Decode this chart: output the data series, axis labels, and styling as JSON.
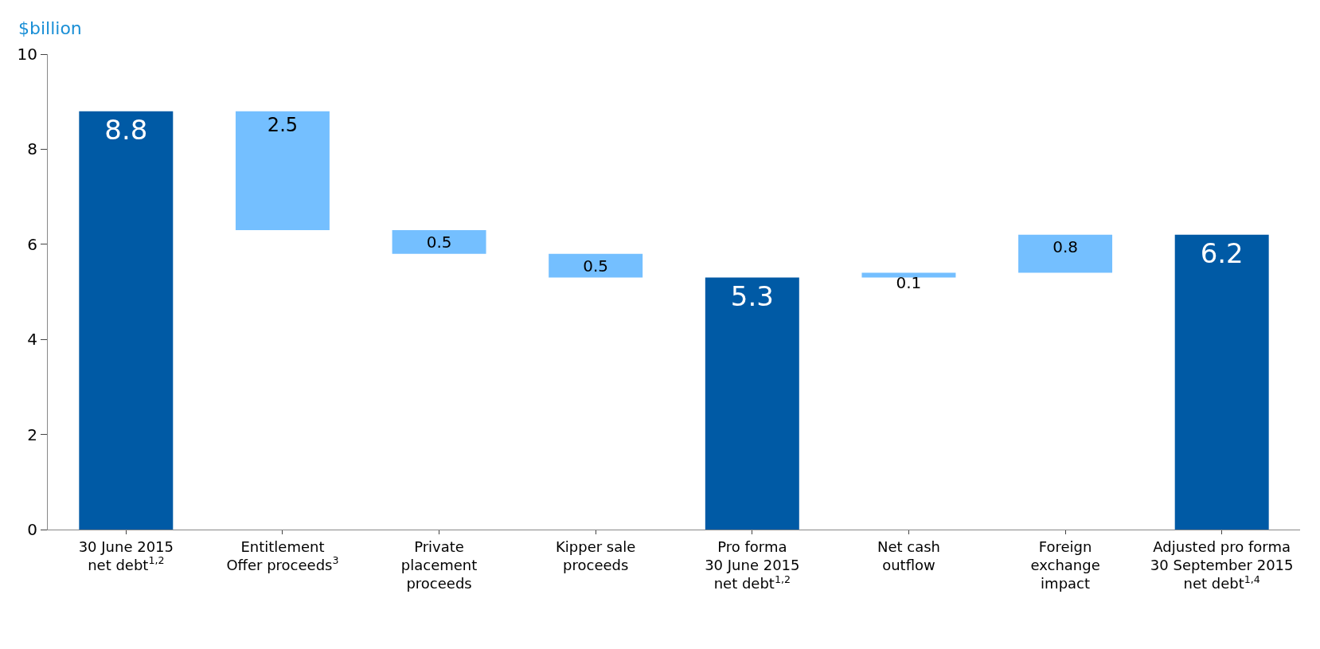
{
  "chart_data": {
    "type": "bar",
    "ylabel": "$billion",
    "categories": [
      "30 June 2015\nnet debt$^{1,2}$",
      "Entitlement\nOffer proceeds$^{3}$",
      "Private\nplacement\nproceeds",
      "Kipper sale\nproceeds",
      "Pro forma\n30 June 2015\nnet debt$^{1,2}$",
      "Net cash\noutflow",
      "Foreign\nexchange\nimpact",
      "Adjusted pro forma\n30 September 2015\nnet debt$^{1,4}$"
    ],
    "values": [
      8.8,
      2.5,
      0.5,
      0.5,
      5.3,
      0.1,
      0.8,
      6.2
    ],
    "base": [
      0,
      6.3,
      5.8,
      5.3,
      0,
      5.3,
      5.4,
      0
    ],
    "colors": [
      "#005aa5",
      "#74bfff",
      "#74bfff",
      "#74bfff",
      "#005aa5",
      "#74bfff",
      "#74bfff",
      "#005aa5"
    ],
    "ylim": [
      0,
      10
    ],
    "yticks": [
      0,
      2,
      4,
      6,
      8,
      10
    ],
    "data_labels": true,
    "legend": false
  }
}
